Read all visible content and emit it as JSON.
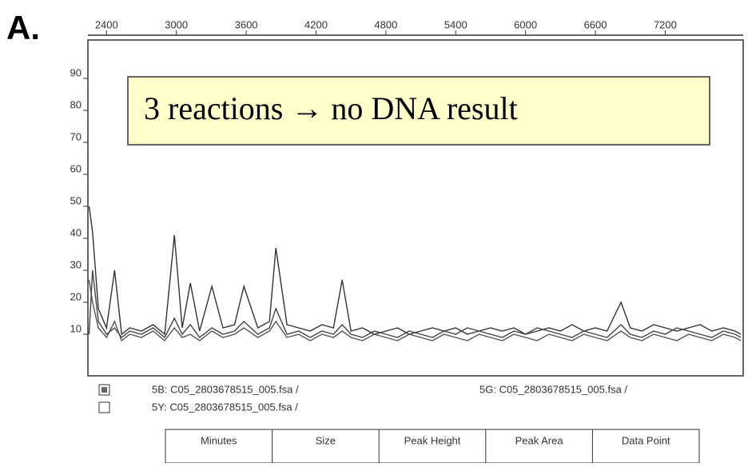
{
  "panel_label": "A.",
  "chart_data": {
    "type": "line",
    "annotation": "3 reactions → no DNA result",
    "x": [
      2250,
      2280,
      2330,
      2400,
      2469,
      2530,
      2600,
      2700,
      2800,
      2900,
      2983,
      3050,
      3120,
      3200,
      3305,
      3400,
      3500,
      3580,
      3700,
      3800,
      3855,
      3950,
      4050,
      4150,
      4250,
      4350,
      4425,
      4500,
      4600,
      4700,
      4800,
      4900,
      5000,
      5100,
      5200,
      5300,
      5400,
      5500,
      5600,
      5700,
      5800,
      5900,
      6000,
      6100,
      6200,
      6300,
      6400,
      6500,
      6600,
      6700,
      6820,
      6900,
      7000,
      7100,
      7200,
      7300,
      7400,
      7500,
      7600,
      7700,
      7800,
      7850
    ],
    "series": [
      {
        "name": "5B: C05_2803678515_005.fsa  /",
        "color": "#333333",
        "marker": "filled",
        "values": [
          50,
          42,
          18,
          12,
          30,
          10,
          12,
          11,
          13,
          10,
          41,
          12,
          26,
          11,
          25,
          12,
          13,
          25,
          12,
          14,
          37,
          13,
          12,
          11,
          13,
          12,
          27,
          11,
          12,
          10,
          11,
          12,
          10,
          11,
          12,
          11,
          12,
          10,
          11,
          12,
          11,
          12,
          10,
          11,
          12,
          11,
          13,
          11,
          12,
          11,
          20,
          12,
          11,
          13,
          12,
          11,
          12,
          13,
          11,
          12,
          11,
          10
        ]
      },
      {
        "name": "5Y: C05_2803678515_005.fsa  /",
        "color": "#555555",
        "marker": "empty",
        "values": [
          27,
          20,
          12,
          9,
          14,
          8,
          10,
          9,
          11,
          8,
          12,
          9,
          10,
          8,
          11,
          9,
          10,
          12,
          9,
          11,
          14,
          9,
          10,
          8,
          10,
          9,
          11,
          9,
          8,
          10,
          9,
          8,
          10,
          9,
          8,
          10,
          9,
          8,
          10,
          9,
          8,
          10,
          9,
          8,
          10,
          9,
          8,
          10,
          9,
          8,
          11,
          9,
          8,
          10,
          9,
          8,
          10,
          9,
          8,
          10,
          9,
          8
        ]
      },
      {
        "name": "5G: C05_2803678515_005.fsa  /",
        "color": "#444444",
        "marker": "none",
        "values": [
          10,
          30,
          14,
          10,
          12,
          9,
          11,
          10,
          12,
          9,
          15,
          10,
          13,
          9,
          12,
          10,
          11,
          14,
          10,
          12,
          18,
          10,
          11,
          9,
          11,
          10,
          13,
          10,
          9,
          11,
          10,
          9,
          11,
          10,
          9,
          11,
          10,
          12,
          11,
          10,
          9,
          11,
          10,
          12,
          11,
          10,
          9,
          11,
          10,
          9,
          13,
          10,
          9,
          11,
          10,
          12,
          11,
          10,
          9,
          11,
          10,
          9
        ]
      }
    ],
    "xlim": [
      2240,
      7870
    ],
    "xticks": [
      2400,
      3000,
      3600,
      4200,
      4800,
      5400,
      6000,
      6600,
      7200
    ],
    "ylim": [
      -3,
      102
    ],
    "yticks": [
      10,
      20,
      30,
      40,
      50,
      60,
      70,
      80,
      90
    ]
  },
  "table": {
    "headers": [
      "Minutes",
      "Size",
      "Peak Height",
      "Peak Area",
      "Data Point"
    ]
  }
}
